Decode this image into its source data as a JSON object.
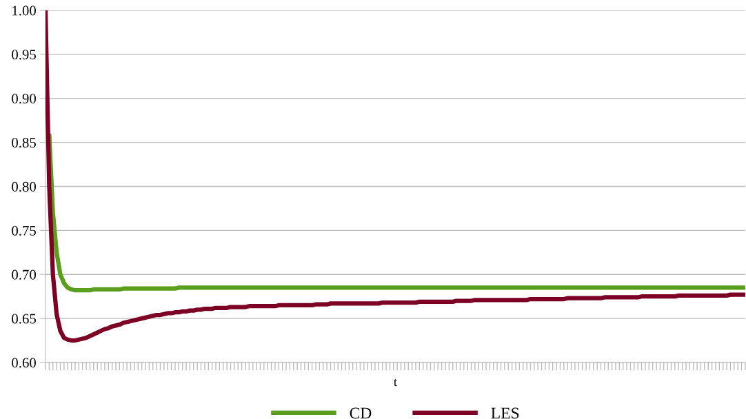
{
  "chart_data": {
    "type": "line",
    "xlabel": "t",
    "categories": [
      null,
      null,
      null,
      null,
      null,
      null,
      null,
      null,
      null,
      null,
      null,
      null,
      null,
      null,
      null,
      null,
      null,
      null,
      null,
      null,
      null,
      null,
      null,
      null,
      null,
      null,
      null,
      null,
      null,
      null,
      null,
      null,
      null,
      null,
      null,
      null,
      null,
      null,
      null,
      null,
      null,
      null,
      null,
      null,
      null,
      null,
      null,
      null,
      null,
      null,
      null,
      null,
      null,
      null,
      null,
      null,
      null,
      null,
      null,
      null,
      null,
      null,
      null,
      null,
      null,
      null,
      null,
      null,
      null,
      null,
      null,
      null,
      null,
      null,
      null,
      null,
      null,
      null,
      null,
      null,
      null,
      null,
      null,
      null,
      null,
      null,
      null,
      null,
      null,
      null,
      null,
      null,
      null,
      null,
      null,
      null,
      null,
      null,
      null,
      null,
      null,
      null,
      null,
      null,
      null,
      null,
      null,
      null,
      null,
      null,
      null,
      null,
      null,
      null,
      null,
      null,
      null,
      null,
      null,
      null,
      null,
      null,
      null,
      null,
      null,
      null,
      null,
      null,
      null,
      null,
      null,
      null,
      null,
      null,
      null,
      null,
      null,
      null,
      null,
      null,
      null,
      null,
      null,
      null,
      null,
      null,
      null,
      null,
      null,
      null,
      null,
      null,
      null,
      null,
      null,
      null,
      null,
      null,
      null,
      null,
      null,
      null,
      null,
      null,
      null,
      null,
      null,
      null,
      null,
      null,
      null,
      null,
      null,
      null,
      null,
      null,
      null,
      null,
      null,
      null,
      null,
      null,
      null,
      null,
      null,
      null,
      null,
      null,
      null,
      null
    ],
    "series": [
      {
        "name": "CD",
        "color": "#5a9e1e",
        "values": [
          null,
          0.86,
          0.77,
          0.725,
          0.7,
          0.69,
          0.685,
          0.683,
          0.682,
          0.682,
          0.682,
          0.682,
          0.682,
          0.683,
          0.683,
          0.683,
          0.683,
          0.683,
          0.683,
          0.683,
          0.683,
          0.684,
          0.684,
          0.684,
          0.684,
          0.684,
          0.684,
          0.684,
          0.684,
          0.684,
          0.684,
          0.684,
          0.684,
          0.684,
          0.684,
          0.684,
          0.685,
          0.685,
          0.685,
          0.685,
          0.685,
          0.685,
          0.685,
          0.685,
          0.685,
          0.685,
          0.685,
          0.685,
          0.685,
          0.685,
          0.685,
          0.685,
          0.685,
          0.685,
          0.685,
          0.685,
          0.685,
          0.685,
          0.685,
          0.685,
          0.685,
          0.685,
          0.685,
          0.685,
          0.685,
          0.685,
          0.685,
          0.685,
          0.685,
          0.685,
          0.685,
          0.685,
          0.685,
          0.685,
          0.685,
          0.685,
          0.685,
          0.685,
          0.685,
          0.685,
          0.685,
          0.685,
          0.685,
          0.685,
          0.685,
          0.685,
          0.685,
          0.685,
          0.685,
          0.685,
          0.685,
          0.685,
          0.685,
          0.685,
          0.685,
          0.685,
          0.685,
          0.685,
          0.685,
          0.685,
          0.685,
          0.685,
          0.685,
          0.685,
          0.685,
          0.685,
          0.685,
          0.685,
          0.685,
          0.685,
          0.685,
          0.685,
          0.685,
          0.685,
          0.685,
          0.685,
          0.685,
          0.685,
          0.685,
          0.685,
          0.685,
          0.685,
          0.685,
          0.685,
          0.685,
          0.685,
          0.685,
          0.685,
          0.685,
          0.685,
          0.685,
          0.685,
          0.685,
          0.685,
          0.685,
          0.685,
          0.685,
          0.685,
          0.685,
          0.685,
          0.685,
          0.685,
          0.685,
          0.685,
          0.685,
          0.685,
          0.685,
          0.685,
          0.685,
          0.685,
          0.685,
          0.685,
          0.685,
          0.685,
          0.685,
          0.685,
          0.685,
          0.685,
          0.685,
          0.685,
          0.685,
          0.685,
          0.685,
          0.685,
          0.685,
          0.685,
          0.685,
          0.685,
          0.685,
          0.685,
          0.685,
          0.685,
          0.685,
          0.685,
          0.685,
          0.685,
          0.685,
          0.685,
          0.685,
          0.685,
          0.685,
          0.685,
          0.685,
          0.685,
          0.685,
          0.685,
          0.685,
          0.685,
          0.685,
          0.685
        ]
      },
      {
        "name": "LES",
        "color": "#7d0025",
        "values": [
          1.0,
          0.8,
          0.7,
          0.655,
          0.636,
          0.628,
          0.626,
          0.625,
          0.625,
          0.626,
          0.627,
          0.628,
          0.63,
          0.632,
          0.634,
          0.636,
          0.638,
          0.639,
          0.641,
          0.642,
          0.643,
          0.645,
          0.646,
          0.647,
          0.648,
          0.649,
          0.65,
          0.651,
          0.652,
          0.653,
          0.654,
          0.654,
          0.655,
          0.656,
          0.656,
          0.657,
          0.657,
          0.658,
          0.658,
          0.659,
          0.659,
          0.66,
          0.66,
          0.661,
          0.661,
          0.661,
          0.662,
          0.662,
          0.662,
          0.662,
          0.663,
          0.663,
          0.663,
          0.663,
          0.663,
          0.664,
          0.664,
          0.664,
          0.664,
          0.664,
          0.664,
          0.664,
          0.664,
          0.665,
          0.665,
          0.665,
          0.665,
          0.665,
          0.665,
          0.665,
          0.665,
          0.665,
          0.665,
          0.666,
          0.666,
          0.666,
          0.666,
          0.667,
          0.667,
          0.667,
          0.667,
          0.667,
          0.667,
          0.667,
          0.667,
          0.667,
          0.667,
          0.667,
          0.667,
          0.667,
          0.667,
          0.668,
          0.668,
          0.668,
          0.668,
          0.668,
          0.668,
          0.668,
          0.668,
          0.668,
          0.668,
          0.669,
          0.669,
          0.669,
          0.669,
          0.669,
          0.669,
          0.669,
          0.669,
          0.669,
          0.669,
          0.67,
          0.67,
          0.67,
          0.67,
          0.67,
          0.671,
          0.671,
          0.671,
          0.671,
          0.671,
          0.671,
          0.671,
          0.671,
          0.671,
          0.671,
          0.671,
          0.671,
          0.671,
          0.671,
          0.671,
          0.672,
          0.672,
          0.672,
          0.672,
          0.672,
          0.672,
          0.672,
          0.672,
          0.672,
          0.672,
          0.673,
          0.673,
          0.673,
          0.673,
          0.673,
          0.673,
          0.673,
          0.673,
          0.673,
          0.673,
          0.674,
          0.674,
          0.674,
          0.674,
          0.674,
          0.674,
          0.674,
          0.674,
          0.674,
          0.674,
          0.675,
          0.675,
          0.675,
          0.675,
          0.675,
          0.675,
          0.675,
          0.675,
          0.675,
          0.675,
          0.676,
          0.676,
          0.676,
          0.676,
          0.676,
          0.676,
          0.676,
          0.676,
          0.676,
          0.676,
          0.676,
          0.676,
          0.676,
          0.676,
          0.677,
          0.677,
          0.677,
          0.677,
          0.677
        ]
      }
    ],
    "ylim": [
      0.6,
      1.0
    ],
    "yticks": [
      {
        "value": 0.6,
        "label": "0.60"
      },
      {
        "value": 0.65,
        "label": "0.65"
      },
      {
        "value": 0.7,
        "label": "0.70"
      },
      {
        "value": 0.75,
        "label": "0.75"
      },
      {
        "value": 0.8,
        "label": "0.80"
      },
      {
        "value": 0.85,
        "label": "0.85"
      },
      {
        "value": 0.9,
        "label": "0.90"
      },
      {
        "value": 0.95,
        "label": "0.95"
      },
      {
        "value": 1.0,
        "label": "1.00"
      }
    ],
    "grid": "y",
    "legend": "bottom",
    "marker": "none",
    "line_style": "solid"
  }
}
